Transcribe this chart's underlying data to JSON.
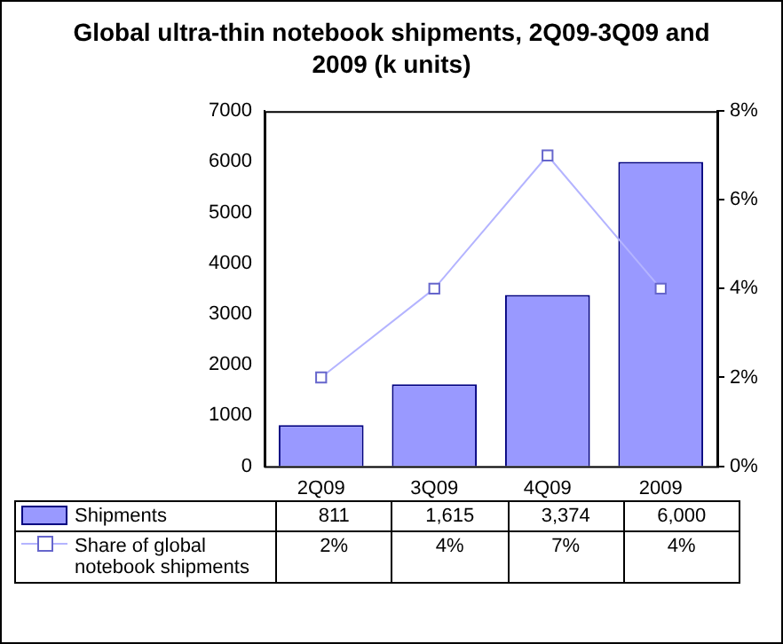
{
  "chart_data": {
    "type": "bar",
    "title": "Global ultra-thin notebook shipments, 2Q09-3Q09 and 2009 (k units)",
    "categories": [
      "2Q09",
      "3Q09",
      "4Q09",
      "2009"
    ],
    "series": [
      {
        "name": "Shipments",
        "color": "#9999ff",
        "values": [
          811,
          1615,
          3374,
          6000
        ],
        "value_labels": [
          "811",
          "1,615",
          "3,374",
          "6,000"
        ]
      },
      {
        "name": "Share of global notebook shipments",
        "type": "line",
        "axis": "y2",
        "color": "#b4b4ff",
        "marker": "square",
        "values": [
          2,
          4,
          7,
          4
        ],
        "value_labels": [
          "2%",
          "4%",
          "7%",
          "4%"
        ]
      }
    ],
    "ylim": [
      0,
      7000
    ],
    "yticks": [
      0,
      1000,
      2000,
      3000,
      4000,
      5000,
      6000,
      7000
    ],
    "y2lim": [
      0,
      8
    ],
    "y2ticks": [
      {
        "value": 0,
        "label": "0%"
      },
      {
        "value": 2,
        "label": "2%"
      },
      {
        "value": 4,
        "label": "4%"
      },
      {
        "value": 6,
        "label": "6%"
      },
      {
        "value": 8,
        "label": "8%"
      }
    ],
    "grid": false,
    "legend": "bottom"
  }
}
